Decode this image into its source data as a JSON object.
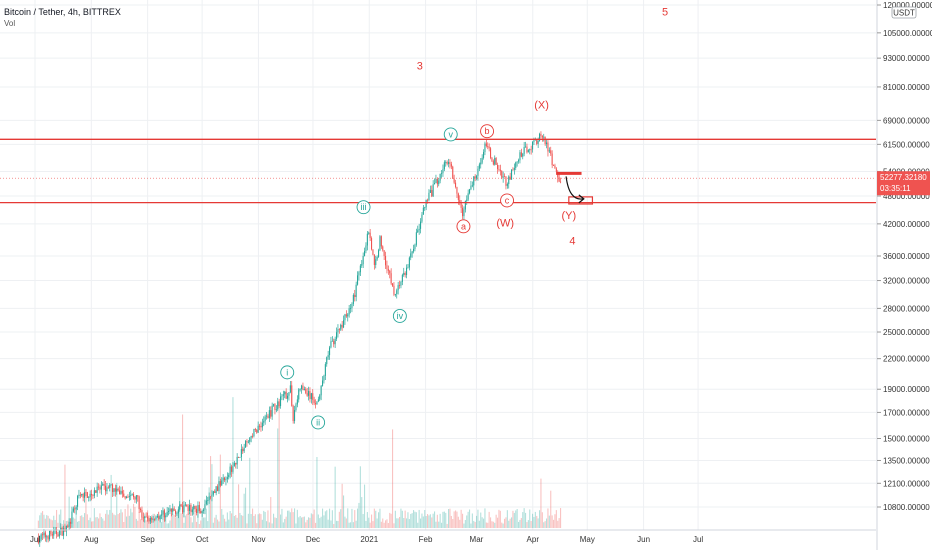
{
  "header": {
    "title": "Bitcoin / Tether, 4h, BITTREX",
    "volume_label": "Vol"
  },
  "colors": {
    "up": "#26a69a",
    "down": "#ef5350",
    "level": "#e53935",
    "teal": "#26a69a",
    "grid": "#eef0f3",
    "axis_text": "#333333",
    "price_box": "#ef5350"
  },
  "chart_data": {
    "type": "candlestick",
    "y_scale": "log",
    "currency_label": "USDT",
    "price_ticks": [
      "120000.00000",
      "105000.00000",
      "93000.00000",
      "81000.00000",
      "69000.00000",
      "61500.00000",
      "54000.00000",
      "48000.00000",
      "42000.00000",
      "36000.00000",
      "32000.00000",
      "28000.00000",
      "25000.00000",
      "22000.00000",
      "19000.00000",
      "17000.00000",
      "15000.00000",
      "13500.00000",
      "12100.00000",
      "10800.00000"
    ],
    "time_ticks": [
      "Jul",
      "Aug",
      "Sep",
      "Oct",
      "Nov",
      "Dec",
      "2021",
      "Feb",
      "Mar",
      "Apr",
      "May",
      "Jun",
      "Jul"
    ],
    "current_price": "52277.32180",
    "countdown": "03:35:11",
    "horizontal_levels": [
      63000,
      46500
    ],
    "price_path": [
      {
        "date": "2020-07-10",
        "price": 9300
      },
      {
        "date": "2020-07-26",
        "price": 9700
      },
      {
        "date": "2020-08-01",
        "price": 11300
      },
      {
        "date": "2020-08-17",
        "price": 11900
      },
      {
        "date": "2020-09-03",
        "price": 11200
      },
      {
        "date": "2020-09-05",
        "price": 10100
      },
      {
        "date": "2020-09-25",
        "price": 10700
      },
      {
        "date": "2020-10-08",
        "price": 10700
      },
      {
        "date": "2020-10-21",
        "price": 12500
      },
      {
        "date": "2020-11-06",
        "price": 15500
      },
      {
        "date": "2020-11-19",
        "price": 17800
      },
      {
        "date": "2020-11-26",
        "price": 19000
      },
      {
        "date": "2020-11-27",
        "price": 16500
      },
      {
        "date": "2020-12-01",
        "price": 19200
      },
      {
        "date": "2020-12-11",
        "price": 17700
      },
      {
        "date": "2020-12-17",
        "price": 23000
      },
      {
        "date": "2020-12-30",
        "price": 28900
      },
      {
        "date": "2021-01-08",
        "price": 41000
      },
      {
        "date": "2021-01-11",
        "price": 34000
      },
      {
        "date": "2021-01-14",
        "price": 39000
      },
      {
        "date": "2021-01-22",
        "price": 30000
      },
      {
        "date": "2021-01-29",
        "price": 34000
      },
      {
        "date": "2021-02-08",
        "price": 46000
      },
      {
        "date": "2021-02-21",
        "price": 58000
      },
      {
        "date": "2021-02-28",
        "price": 44000
      },
      {
        "date": "2021-03-13",
        "price": 61000
      },
      {
        "date": "2021-03-25",
        "price": 51000
      },
      {
        "date": "2021-04-02",
        "price": 59000
      },
      {
        "date": "2021-04-14",
        "price": 64500
      },
      {
        "date": "2021-04-21",
        "price": 53000
      },
      {
        "date": "2021-04-24",
        "price": 52277
      }
    ],
    "annotations": [
      {
        "label": "3",
        "style": "plain",
        "date": "2021-02-05",
        "price": 88000
      },
      {
        "label": "5",
        "style": "plain",
        "date": "2021-06-20",
        "price": 114000
      },
      {
        "label": "(X)",
        "style": "plain",
        "date": "2021-04-13",
        "price": 73000
      },
      {
        "label": "(W)",
        "style": "plain",
        "date": "2021-03-24",
        "price": 41500
      },
      {
        "label": "(Y)",
        "style": "plain",
        "date": "2021-04-28",
        "price": 43000
      },
      {
        "label": "4",
        "style": "plain",
        "date": "2021-04-30",
        "price": 38000
      },
      {
        "label": "b",
        "style": "circle-red",
        "date": "2021-03-14",
        "price": 65500
      },
      {
        "label": "a",
        "style": "circle-red",
        "date": "2021-03-01",
        "price": 41500
      },
      {
        "label": "c",
        "style": "circle-red",
        "date": "2021-03-25",
        "price": 47000
      },
      {
        "label": "v",
        "style": "circle-teal",
        "date": "2021-02-22",
        "price": 64500
      },
      {
        "label": "iii",
        "style": "circle-teal",
        "date": "2021-01-05",
        "price": 45500
      },
      {
        "label": "iv",
        "style": "circle-teal",
        "date": "2021-01-25",
        "price": 27000
      },
      {
        "label": "i",
        "style": "circle-teal",
        "date": "2020-11-24",
        "price": 20600
      },
      {
        "label": "ii",
        "style": "circle-teal",
        "date": "2020-12-11",
        "price": 16200
      }
    ],
    "projection_box": {
      "date_start": "2021-04-28",
      "date_end": "2021-05-11",
      "price_high": 47800,
      "price_low": 46200
    },
    "short_level": {
      "date_start": "2021-04-21",
      "date_end": "2021-05-05",
      "price": 53500
    }
  }
}
